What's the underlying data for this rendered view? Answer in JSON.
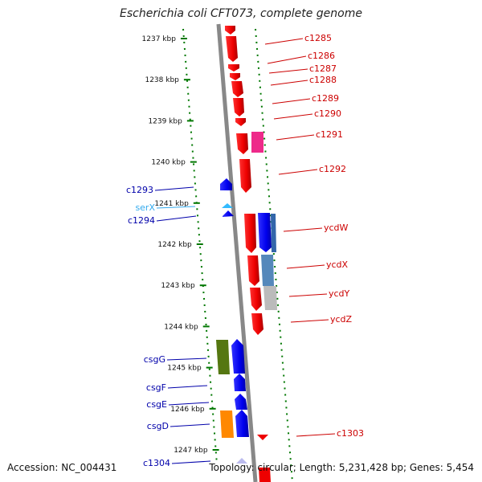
{
  "title": "Escherichia coli CFT073, complete genome",
  "accession": "Accession: NC_004431",
  "summary": "Topology: circular; Length: 5,231,428 bp; Genes: 5,454",
  "ticks": [
    "1237 kbp",
    "1238 kbp",
    "1239 kbp",
    "1240 kbp",
    "1241 kbp",
    "1242 kbp",
    "1243 kbp",
    "1244 kbp",
    "1245 kbp",
    "1246 kbp",
    "1247 kbp"
  ],
  "colors": {
    "forward": "#ff0000",
    "reverse": "#0000ff",
    "rna": "#33bbff",
    "label_forward": "#cc0000",
    "label_reverse": "#0000aa",
    "label_rna": "#33aaee",
    "backbone": "#888888",
    "tick": "#007700"
  },
  "genes_forward": [
    {
      "name": "c1285"
    },
    {
      "name": "c1286"
    },
    {
      "name": "c1287"
    },
    {
      "name": "c1288"
    },
    {
      "name": "c1289"
    },
    {
      "name": "c1290"
    },
    {
      "name": "c1291"
    },
    {
      "name": "c1292"
    },
    {
      "name": "ycdW"
    },
    {
      "name": "ycdX"
    },
    {
      "name": "ycdY"
    },
    {
      "name": "ycdZ"
    },
    {
      "name": "c1303"
    }
  ],
  "genes_reverse": [
    {
      "name": "c1293"
    },
    {
      "name": "serX"
    },
    {
      "name": "c1294"
    },
    {
      "name": "csgG"
    },
    {
      "name": "csgF"
    },
    {
      "name": "csgE"
    },
    {
      "name": "csgD"
    },
    {
      "name": "c1304"
    }
  ]
}
